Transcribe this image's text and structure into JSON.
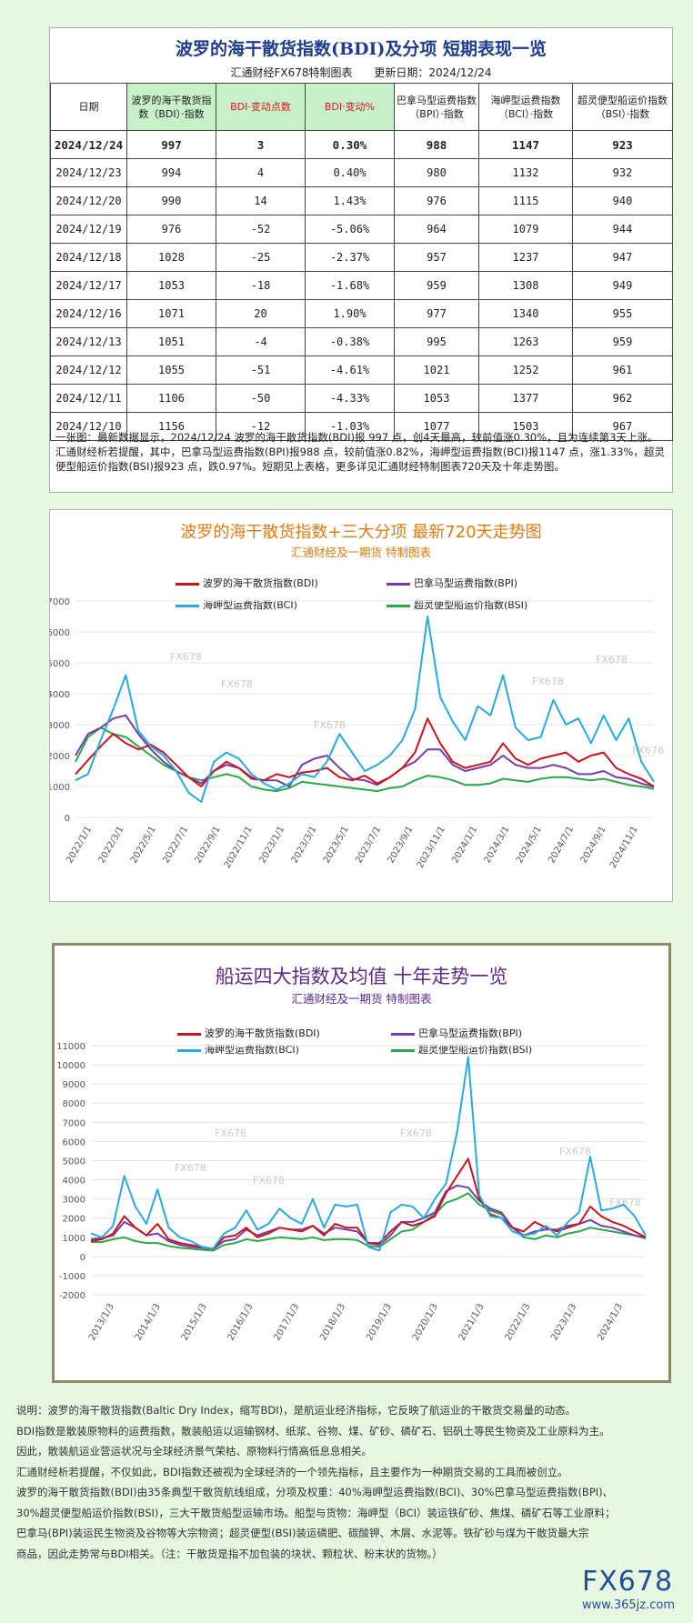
{
  "header": {
    "title": "波罗的海干散货指数(BDI)及分项 短期表现一览",
    "source": "汇通财经FX678特制图表",
    "update_date": "更新日期：2024/12/24"
  },
  "table": {
    "columns": [
      "日期",
      "波罗的海干散货指数（BDI）·指数",
      "BDI·变动点数",
      "BDI·变动%",
      "巴拿马型运费指数（BPI）·指数",
      "海岬型运费指数（BCI）·指数",
      "超灵便型船运价指数（BSI）·指数"
    ],
    "rows": [
      [
        "2024/12/24",
        "997",
        "3",
        "0.30%",
        "988",
        "1147",
        "923"
      ],
      [
        "2024/12/23",
        "994",
        "4",
        "0.40%",
        "980",
        "1132",
        "932"
      ],
      [
        "2024/12/20",
        "990",
        "14",
        "1.43%",
        "976",
        "1115",
        "940"
      ],
      [
        "2024/12/19",
        "976",
        "-52",
        "-5.06%",
        "964",
        "1079",
        "944"
      ],
      [
        "2024/12/18",
        "1028",
        "-25",
        "-2.37%",
        "957",
        "1237",
        "947"
      ],
      [
        "2024/12/17",
        "1053",
        "-18",
        "-1.68%",
        "959",
        "1308",
        "949"
      ],
      [
        "2024/12/16",
        "1071",
        "20",
        "1.90%",
        "977",
        "1340",
        "955"
      ],
      [
        "2024/12/13",
        "1051",
        "-4",
        "-0.38%",
        "995",
        "1263",
        "959"
      ],
      [
        "2024/12/12",
        "1055",
        "-51",
        "-4.61%",
        "1021",
        "1252",
        "961"
      ],
      [
        "2024/12/11",
        "1106",
        "-50",
        "-4.33%",
        "1053",
        "1377",
        "962"
      ],
      [
        "2024/12/10",
        "1156",
        "-12",
        "-1.03%",
        "1077",
        "1503",
        "967"
      ]
    ],
    "note": "一张图：最新数据显示，2024/12/24 波罗的海干散货指数(BDI)报 997 点，创4天最高，较前值涨0.30%，且为连续第3天上涨。汇通财经析若提醒，其中，巴拿马型运费指数(BPI)报988 点，较前值涨0.82%，海岬型运费指数(BCI)报1147 点，涨1.33%，超灵便型船运价指数(BSI)报923 点，跌0.97%。短期见上表格，更多详见汇通财经特制图表720天及十年走势图。"
  },
  "colors": {
    "bdi": "#c8141e",
    "bpi": "#7a3aa8",
    "bci": "#2aa8e0",
    "bsi": "#2aa84a"
  },
  "chart_data": [
    {
      "type": "line",
      "title": "波罗的海干散货指数+三大分项  最新720天走势图",
      "subtitle": "汇通财经及一期货  特制图表",
      "x_ticks": [
        "2022/1/1",
        "2022/3/1",
        "2022/5/1",
        "2022/7/1",
        "2022/9/1",
        "2022/11/1",
        "2023/1/1",
        "2023/3/1",
        "2023/5/1",
        "2023/7/1",
        "2023/9/1",
        "2023/11/1",
        "2024/1/1",
        "2024/3/1",
        "2024/5/1",
        "2024/7/1",
        "2024/9/1",
        "2024/11/1"
      ],
      "y_ticks": [
        "0",
        "1000",
        "2000",
        "3000",
        "4000",
        "5000",
        "6000",
        "7000"
      ],
      "ylim": [
        0,
        7000
      ],
      "legend": [
        "波罗的海干散货指数(BDI)",
        "巴拿马型运费指数(BPI)",
        "海岬型运费指数(BCI)",
        "超灵便型船运价指数(BSI)"
      ],
      "watermark": "FX678",
      "series": [
        {
          "name": "波罗的海干散货指数(BDI)",
          "color_key": "bdi",
          "values": [
            1400,
            1850,
            2300,
            2700,
            2400,
            2200,
            2350,
            2100,
            1700,
            1300,
            1000,
            1500,
            1800,
            1600,
            1250,
            1200,
            1400,
            1300,
            1450,
            1500,
            1600,
            1300,
            1200,
            1350,
            1100,
            1300,
            1600,
            2100,
            3200,
            2400,
            1800,
            1600,
            1700,
            1800,
            2400,
            1900,
            1700,
            1900,
            2000,
            2100,
            1800,
            2000,
            2100,
            1600,
            1400,
            1250,
            1000
          ]
        },
        {
          "name": "巴拿马型运费指数(BPI)",
          "color_key": "bpi",
          "values": [
            2000,
            2700,
            2900,
            3200,
            3300,
            2700,
            2200,
            1800,
            1500,
            1300,
            1100,
            1500,
            1700,
            1600,
            1300,
            1200,
            1200,
            1000,
            1700,
            1900,
            2000,
            1600,
            1250,
            1200,
            1050,
            1300,
            1600,
            1800,
            2200,
            2200,
            1700,
            1500,
            1600,
            1700,
            2000,
            1700,
            1600,
            1600,
            1700,
            1600,
            1400,
            1400,
            1500,
            1300,
            1250,
            1100,
            990
          ]
        },
        {
          "name": "海岬型运费指数(BCI)",
          "color_key": "bci",
          "values": [
            1200,
            1400,
            2500,
            3500,
            4600,
            2800,
            2300,
            2000,
            1500,
            800,
            500,
            1800,
            2100,
            1900,
            1400,
            1100,
            900,
            1100,
            1400,
            1300,
            1800,
            2700,
            2100,
            1500,
            1700,
            2000,
            2500,
            3500,
            6500,
            3900,
            3100,
            2500,
            3600,
            3300,
            4600,
            2900,
            2500,
            2600,
            3800,
            3000,
            3200,
            2400,
            3300,
            2500,
            3200,
            1800,
            1150
          ]
        },
        {
          "name": "超灵便型船运价指数(BSI)",
          "color_key": "bsi",
          "values": [
            1800,
            2600,
            2900,
            2700,
            2600,
            2300,
            2000,
            1700,
            1500,
            1300,
            1200,
            1300,
            1400,
            1300,
            1000,
            900,
            850,
            950,
            1150,
            1100,
            1050,
            1000,
            950,
            900,
            850,
            950,
            1000,
            1200,
            1350,
            1300,
            1200,
            1050,
            1050,
            1100,
            1250,
            1200,
            1150,
            1250,
            1300,
            1300,
            1250,
            1200,
            1250,
            1150,
            1050,
            1000,
            925
          ]
        }
      ]
    },
    {
      "type": "line",
      "title": "船运四大指数及均值 十年走势一览",
      "subtitle": "汇通财经及一期货 特制图表",
      "x_ticks": [
        "2013/1/3",
        "2014/1/3",
        "2015/1/3",
        "2016/1/3",
        "2017/1/3",
        "2018/1/3",
        "2019/1/3",
        "2020/1/3",
        "2021/1/3",
        "2022/1/3",
        "2023/1/3",
        "2024/1/3"
      ],
      "y_ticks": [
        "-2000",
        "-1000",
        "0",
        "1000",
        "2000",
        "3000",
        "4000",
        "5000",
        "6000",
        "7000",
        "8000",
        "9000",
        "10000",
        "11000"
      ],
      "ylim": [
        -2000,
        11000
      ],
      "legend": [
        "波罗的海干散货指数(BDI)",
        "巴拿马型运费指数(BPI)",
        "海岬型运费指数(BCI)",
        "超灵便型船运价指数(BSI)"
      ],
      "watermark": "FX678",
      "series": [
        {
          "name": "波罗的海干散货指数(BDI)",
          "color_key": "bdi",
          "values": [
            800,
            900,
            1200,
            2100,
            1500,
            1100,
            1700,
            900,
            700,
            600,
            500,
            400,
            1000,
            1100,
            1500,
            1000,
            1200,
            1500,
            1400,
            1300,
            1600,
            1100,
            1700,
            1500,
            1500,
            700,
            700,
            1300,
            1800,
            1600,
            1800,
            2100,
            3300,
            4200,
            5100,
            3000,
            2200,
            2000,
            1500,
            1300,
            1800,
            1500,
            1300,
            1500,
            1700,
            2600,
            2100,
            1800,
            1600,
            1300,
            1000
          ]
        },
        {
          "name": "巴拿马型运费指数(BPI)",
          "color_key": "bpi",
          "values": [
            900,
            950,
            1100,
            1800,
            1500,
            1100,
            1200,
            800,
            600,
            500,
            450,
            400,
            800,
            900,
            1400,
            1100,
            1300,
            1500,
            1400,
            1400,
            1600,
            1200,
            1500,
            1400,
            1300,
            700,
            600,
            1100,
            1800,
            1800,
            2000,
            2300,
            3400,
            3700,
            3600,
            2900,
            2500,
            2300,
            1500,
            1100,
            1300,
            1400,
            1400,
            1600,
            1700,
            1900,
            1600,
            1500,
            1300,
            1100,
            1000
          ]
        },
        {
          "name": "海岬型运费指数(BCI)",
          "color_key": "bci",
          "values": [
            1200,
            1000,
            1600,
            4200,
            2600,
            1700,
            3500,
            1500,
            1000,
            800,
            500,
            400,
            1200,
            1500,
            2400,
            1400,
            1700,
            2500,
            2000,
            1700,
            3000,
            1500,
            2700,
            2600,
            2700,
            500,
            300,
            2300,
            2700,
            2600,
            2000,
            3000,
            3800,
            6500,
            10400,
            3200,
            2100,
            2000,
            1300,
            1100,
            1200,
            1600,
            1100,
            1800,
            2300,
            5200,
            2400,
            2500,
            2700,
            2100,
            1100
          ]
        },
        {
          "name": "超灵便型船运价指数(BSI)",
          "color_key": "bsi",
          "values": [
            750,
            750,
            900,
            1000,
            800,
            700,
            700,
            550,
            450,
            400,
            350,
            300,
            600,
            700,
            900,
            800,
            900,
            1000,
            950,
            900,
            1000,
            850,
            900,
            900,
            850,
            550,
            500,
            900,
            1300,
            1400,
            1800,
            2200,
            2800,
            3000,
            3300,
            2700,
            2400,
            2200,
            1500,
            1000,
            900,
            1100,
            1000,
            1200,
            1300,
            1500,
            1400,
            1300,
            1200,
            1100,
            930
          ]
        }
      ]
    }
  ],
  "explain": [
    "说明：波罗的海干散货指数(Baltic Dry Index，缩写BDI)，是航运业经济指标，它反映了航运业的干散货交易量的动态。",
    "BDI指数是散装原物料的运费指数，散装船运以运输钢材、纸浆、谷物、煤、矿砂、磷矿石、铝矾土等民生物资及工业原料为主。",
    "因此，散装航运业营运状况与全球经济景气荣枯、原物料行情高低息息相关。",
    "汇通财经析若提醒，不仅如此，BDI指数还被视为全球经济的一个领先指标，且主要作为一种期货交易的工具而被创立。",
    "波罗的海干散货指数(BDI)由35条典型干散货航线组成，分项及权重：40%海岬型运费指数(BCI)、30%巴拿马型运费指数(BPI)、",
    "30%超灵便型船运价指数(BSI)，三大干散货船型运输市场。船型与货物：海岬型（BCI）装运铁矿砂、焦煤、磷矿石等工业原料；",
    "巴拿马(BPI)装运民生物资及谷物等大宗物资；超灵便型(BSI)装运磷肥、碳酸钾、木屑、水泥等。铁矿砂与煤为干散货最大宗",
    "商品，因此走势常与BDI相关。（注：干散货是指不加包装的块状、颗粒状、粉末状的货物。）"
  ],
  "watermark": {
    "brand": "FX678",
    "url": "www.365jz.com"
  }
}
